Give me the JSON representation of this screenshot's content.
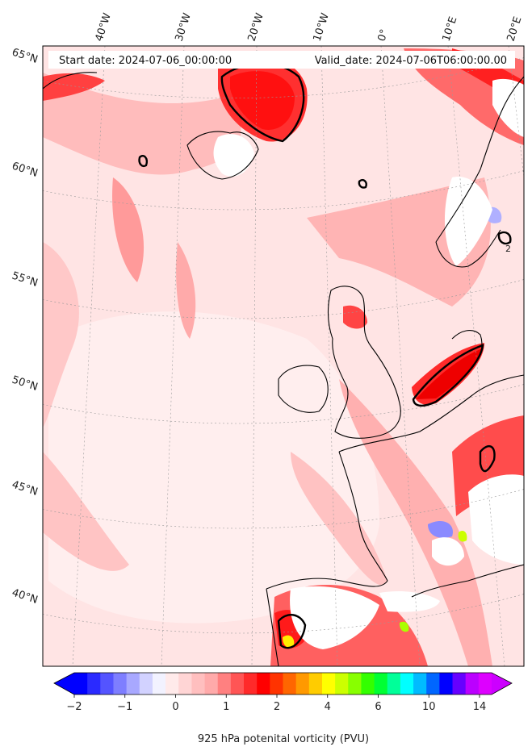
{
  "header": {
    "start_date": "Start date: 2024-07-06_00:00:00",
    "valid_date": "Valid_date: 2024-07-06T06:00:00.00"
  },
  "map": {
    "projection": "Lambert conformal",
    "region": "North-east Atlantic and western Europe",
    "variable": "potential vorticity",
    "pressure_level": "925 hPa",
    "contour_line_label": "2",
    "longitude_labels": [
      "40°W",
      "30°W",
      "20°W",
      "10°W",
      "0°",
      "10°E",
      "20°E"
    ],
    "latitude_labels": [
      "65°N",
      "60°N",
      "55°N",
      "50°N",
      "45°N",
      "40°N"
    ],
    "gridlines": true
  },
  "colorbar": {
    "title": "925 hPa potenital vorticity (PVU)",
    "ticks": [
      "−2",
      "−1",
      "0",
      "1",
      "2",
      "4",
      "6",
      "10",
      "14"
    ],
    "extend": "both",
    "colors": [
      "#0000ff",
      "#2a2aff",
      "#5454ff",
      "#7e7eff",
      "#a8a8ff",
      "#d2d2ff",
      "#f2f2ff",
      "#ffeaea",
      "#ffd5d5",
      "#ffbfbf",
      "#ffaaaa",
      "#ff8080",
      "#ff5555",
      "#ff2a2a",
      "#ff0000",
      "#ff3300",
      "#ff6600",
      "#ff9900",
      "#ffcc00",
      "#ffff00",
      "#ccff00",
      "#88ff00",
      "#33ff00",
      "#00ff33",
      "#00ff99",
      "#00ffff",
      "#00bbff",
      "#0066ff",
      "#0000ff",
      "#6600ff",
      "#bb00ff",
      "#dd00ff"
    ],
    "min_color": "#0000ff",
    "max_color": "#cc00ff"
  },
  "colors": {
    "ocean_base": "#ffe6e6",
    "low_pv": "#ffc8c8",
    "mid_pv": "#ff7070",
    "high_pv": "#ff1a1a",
    "coastline": "#000000"
  }
}
